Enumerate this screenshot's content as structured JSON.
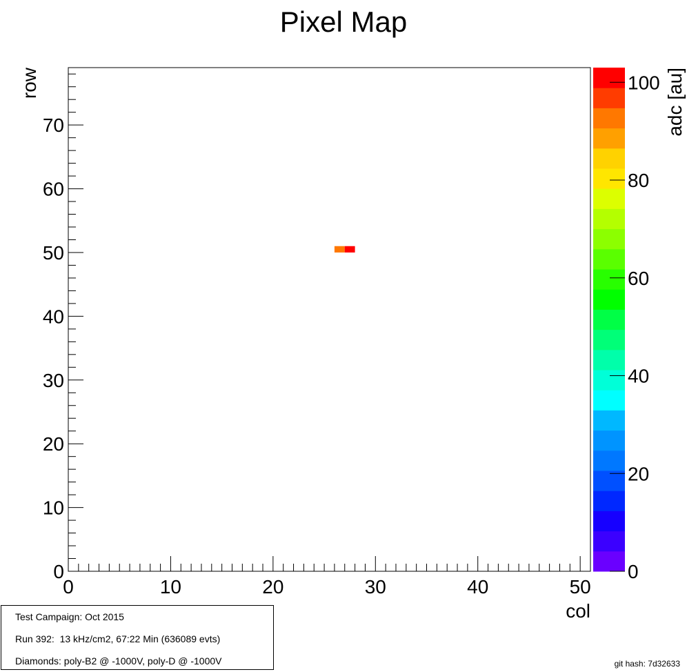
{
  "chart_data": {
    "type": "heatmap",
    "title": "Pixel Map",
    "xlabel": "col",
    "ylabel": "row",
    "zlabel": "adc [au]",
    "xlim": [
      0,
      51
    ],
    "ylim": [
      0,
      79
    ],
    "zlim": [
      0,
      103
    ],
    "x_ticks": [
      0,
      10,
      20,
      30,
      40,
      50
    ],
    "y_ticks": [
      0,
      10,
      20,
      30,
      40,
      50,
      60,
      70
    ],
    "z_ticks": [
      0,
      20,
      40,
      60,
      80,
      100
    ],
    "cells": [
      {
        "col": 27,
        "row": 51,
        "value": 92
      },
      {
        "col": 28,
        "row": 51,
        "value": 99
      }
    ],
    "palette": [
      "#6a00ff",
      "#3b00ff",
      "#1600ff",
      "#0028ff",
      "#0050ff",
      "#0078ff",
      "#0094ff",
      "#00b8ff",
      "#00ffff",
      "#00ffd8",
      "#00ffaa",
      "#00ff78",
      "#00ff46",
      "#00ff00",
      "#28ff00",
      "#5aff00",
      "#8cff00",
      "#b4ff00",
      "#dcff00",
      "#ffe600",
      "#ffd200",
      "#ffa000",
      "#ff7800",
      "#ff3c00",
      "#ff0000"
    ],
    "grid": false
  },
  "info": {
    "line1": "Test Campaign: Oct 2015",
    "line2": "Run 392:  13 kHz/cm2, 67:22 Min (636089 evts)",
    "line3": "Diamonds: poly-B2 @ -1000V, poly-D @ -1000V"
  },
  "git_hash": "git hash: 7d32633"
}
